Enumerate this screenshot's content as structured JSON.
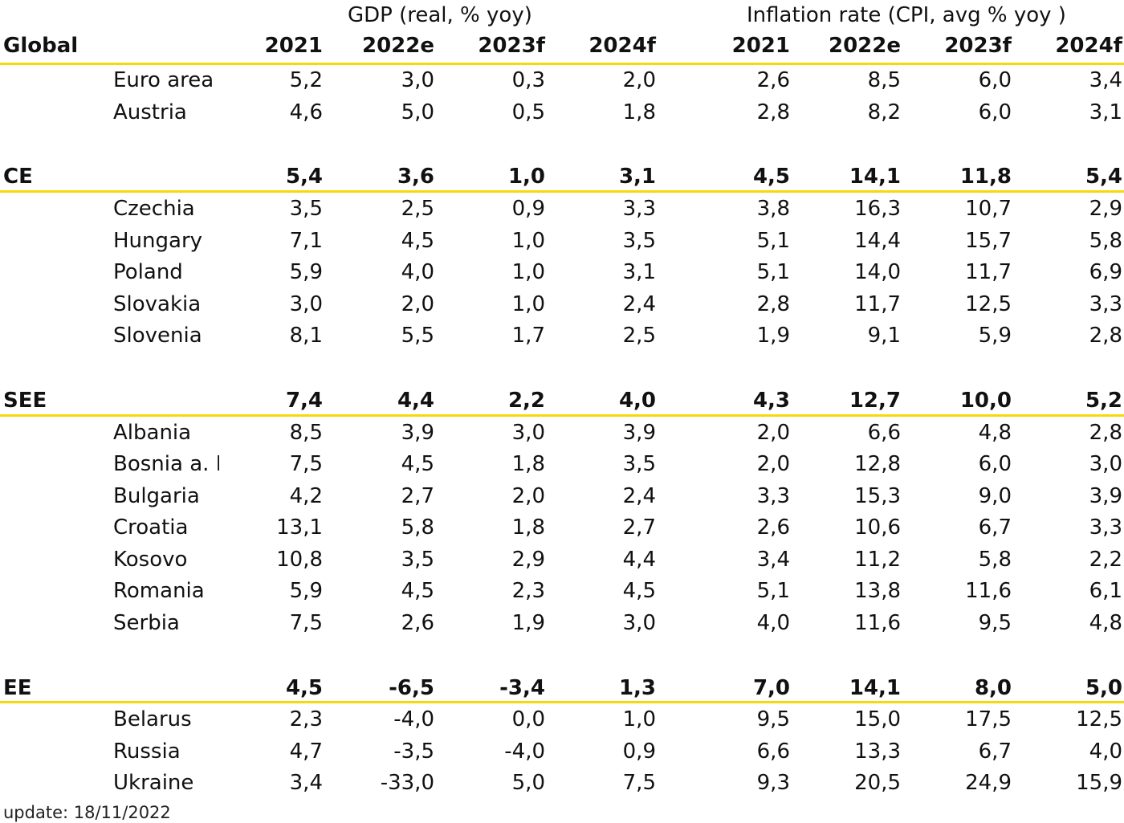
{
  "headers": {
    "gdp_group": "GDP (real, % yoy)",
    "infl_group": "Inflation rate (CPI, avg % yoy )",
    "global_label": "Global",
    "years": [
      "2021",
      "2022e",
      "2023f",
      "2024f",
      "2021",
      "2022e",
      "2023f",
      "2024f"
    ]
  },
  "rows": [
    {
      "kind": "country",
      "name": "Euro area",
      "values": [
        "5,2",
        "3,0",
        "0,3",
        "2,0",
        "2,6",
        "8,5",
        "6,0",
        "3,4"
      ]
    },
    {
      "kind": "country",
      "name": "Austria",
      "values": [
        "4,6",
        "5,0",
        "0,5",
        "1,8",
        "2,8",
        "8,2",
        "6,0",
        "3,1"
      ]
    },
    {
      "kind": "region",
      "name": "CE",
      "values": [
        "5,4",
        "3,6",
        "1,0",
        "3,1",
        "4,5",
        "14,1",
        "11,8",
        "5,4"
      ]
    },
    {
      "kind": "country",
      "name": "Czechia",
      "values": [
        "3,5",
        "2,5",
        "0,9",
        "3,3",
        "3,8",
        "16,3",
        "10,7",
        "2,9"
      ]
    },
    {
      "kind": "country",
      "name": "Hungary",
      "values": [
        "7,1",
        "4,5",
        "1,0",
        "3,5",
        "5,1",
        "14,4",
        "15,7",
        "5,8"
      ]
    },
    {
      "kind": "country",
      "name": "Poland",
      "values": [
        "5,9",
        "4,0",
        "1,0",
        "3,1",
        "5,1",
        "14,0",
        "11,7",
        "6,9"
      ]
    },
    {
      "kind": "country",
      "name": "Slovakia",
      "values": [
        "3,0",
        "2,0",
        "1,0",
        "2,4",
        "2,8",
        "11,7",
        "12,5",
        "3,3"
      ]
    },
    {
      "kind": "country",
      "name": "Slovenia",
      "values": [
        "8,1",
        "5,5",
        "1,7",
        "2,5",
        "1,9",
        "9,1",
        "5,9",
        "2,8"
      ]
    },
    {
      "kind": "region",
      "name": "SEE",
      "values": [
        "7,4",
        "4,4",
        "2,2",
        "4,0",
        "4,3",
        "12,7",
        "10,0",
        "5,2"
      ]
    },
    {
      "kind": "country",
      "name": "Albania",
      "values": [
        "8,5",
        "3,9",
        "3,0",
        "3,9",
        "2,0",
        "6,6",
        "4,8",
        "2,8"
      ]
    },
    {
      "kind": "country",
      "name": "Bosnia a. H.",
      "values": [
        "7,5",
        "4,5",
        "1,8",
        "3,5",
        "2,0",
        "12,8",
        "6,0",
        "3,0"
      ]
    },
    {
      "kind": "country",
      "name": "Bulgaria",
      "values": [
        "4,2",
        "2,7",
        "2,0",
        "2,4",
        "3,3",
        "15,3",
        "9,0",
        "3,9"
      ]
    },
    {
      "kind": "country",
      "name": "Croatia",
      "values": [
        "13,1",
        "5,8",
        "1,8",
        "2,7",
        "2,6",
        "10,6",
        "6,7",
        "3,3"
      ]
    },
    {
      "kind": "country",
      "name": "Kosovo",
      "values": [
        "10,8",
        "3,5",
        "2,9",
        "4,4",
        "3,4",
        "11,2",
        "5,8",
        "2,2"
      ]
    },
    {
      "kind": "country",
      "name": "Romania",
      "values": [
        "5,9",
        "4,5",
        "2,3",
        "4,5",
        "5,1",
        "13,8",
        "11,6",
        "6,1"
      ]
    },
    {
      "kind": "country",
      "name": "Serbia",
      "values": [
        "7,5",
        "2,6",
        "1,9",
        "3,0",
        "4,0",
        "11,6",
        "9,5",
        "4,8"
      ]
    },
    {
      "kind": "region",
      "name": "EE",
      "values": [
        "4,5",
        "-6,5",
        "-3,4",
        "1,3",
        "7,0",
        "14,1",
        "8,0",
        "5,0"
      ]
    },
    {
      "kind": "country",
      "name": "Belarus",
      "values": [
        "2,3",
        "-4,0",
        "0,0",
        "1,0",
        "9,5",
        "15,0",
        "17,5",
        "12,5"
      ]
    },
    {
      "kind": "country",
      "name": "Russia",
      "values": [
        "4,7",
        "-3,5",
        "-4,0",
        "0,9",
        "6,6",
        "13,3",
        "6,7",
        "4,0"
      ]
    },
    {
      "kind": "country",
      "name": "Ukraine",
      "values": [
        "3,4",
        "-33,0",
        "5,0",
        "7,5",
        "9,3",
        "20,5",
        "24,9",
        "15,9"
      ]
    }
  ],
  "footer": "update: 18/11/2022",
  "colors": {
    "rule": "#f5d90a",
    "text": "#111111"
  }
}
